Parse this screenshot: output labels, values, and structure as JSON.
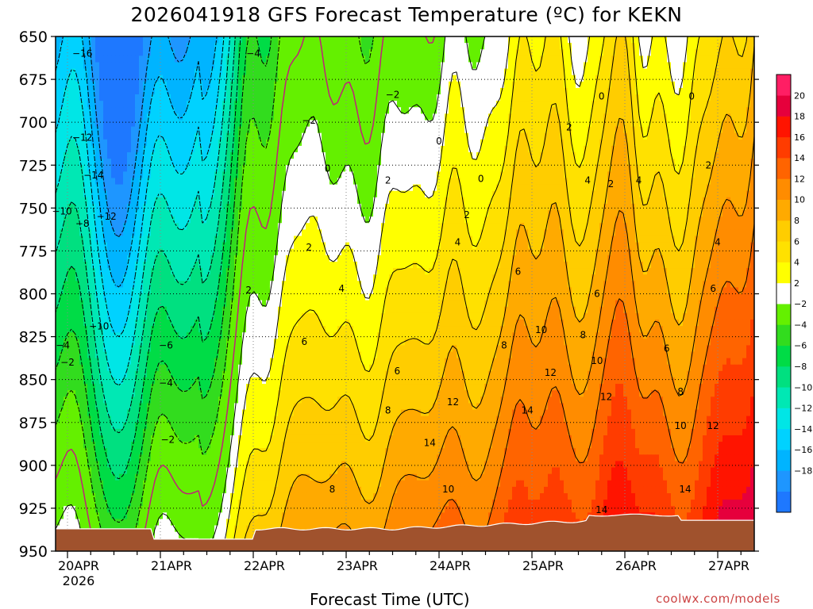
{
  "chart_data": {
    "type": "heatmap",
    "title": "2026041918 GFS Forecast Temperature (ºC) for KEKN",
    "xlabel": "Forecast Time (UTC)",
    "ylabel": "",
    "y_axis": {
      "unit": "hPa",
      "ylim": [
        650,
        950
      ],
      "ticks": [
        "650",
        "675",
        "700",
        "725",
        "750",
        "775",
        "800",
        "825",
        "850",
        "875",
        "900",
        "925",
        "950"
      ]
    },
    "x_axis": {
      "ticks": [
        "20APR",
        "21APR",
        "22APR",
        "23APR",
        "24APR",
        "25APR",
        "26APR",
        "27APR"
      ],
      "year_label": "2026"
    },
    "colorbar": {
      "levels": [
        -20,
        -18,
        -16,
        -14,
        -12,
        -10,
        -8,
        -6,
        -4,
        -2,
        2,
        4,
        6,
        8,
        10,
        12,
        14,
        16,
        18,
        20,
        22
      ],
      "labels": [
        "20",
        "18",
        "16",
        "14",
        "12",
        "10",
        "8",
        "6",
        "4",
        "2",
        "−2",
        "−4",
        "−6",
        "−8",
        "−10",
        "−12",
        "−14",
        "−16",
        "−18"
      ],
      "colors": [
        "#1e78ff",
        "#1e96ff",
        "#00b4ff",
        "#00d2ff",
        "#00e6e6",
        "#00e8b4",
        "#00e080",
        "#00dc46",
        "#32dc1e",
        "#64f000",
        "#ffffff",
        "#ffff00",
        "#ffe100",
        "#ffcd00",
        "#ffaa00",
        "#ff8c00",
        "#ff6400",
        "#ff3c00",
        "#ff1400",
        "#e6003c",
        "#ff1e64"
      ]
    },
    "contour_labels": [
      {
        "text": "−16",
        "t": 0.16,
        "p": 660
      },
      {
        "text": "−12",
        "t": 0.16,
        "p": 709
      },
      {
        "text": "−14",
        "t": 0.28,
        "p": 731
      },
      {
        "text": "−10",
        "t": -0.06,
        "p": 752
      },
      {
        "text": "−8",
        "t": 0.16,
        "p": 759
      },
      {
        "text": "−12",
        "t": 0.42,
        "p": 755
      },
      {
        "text": "−10",
        "t": 0.34,
        "p": 819
      },
      {
        "text": "−4",
        "t": -0.05,
        "p": 830
      },
      {
        "text": "−2",
        "t": 0.0,
        "p": 840
      },
      {
        "text": "−6",
        "t": 1.06,
        "p": 830
      },
      {
        "text": "−4",
        "t": 1.06,
        "p": 852
      },
      {
        "text": "−2",
        "t": 1.08,
        "p": 885
      },
      {
        "text": "−4",
        "t": 2.0,
        "p": 660
      },
      {
        "text": "−2",
        "t": 2.6,
        "p": 699
      },
      {
        "text": "−2",
        "t": 3.5,
        "p": 684
      },
      {
        "text": "0",
        "t": 2.8,
        "p": 727
      },
      {
        "text": "0",
        "t": 4.0,
        "p": 711
      },
      {
        "text": "0",
        "t": 4.45,
        "p": 733
      },
      {
        "text": "0",
        "t": 5.75,
        "p": 685
      },
      {
        "text": "0",
        "t": 6.72,
        "p": 685
      },
      {
        "text": "2",
        "t": 2.6,
        "p": 773
      },
      {
        "text": "2",
        "t": 1.95,
        "p": 798
      },
      {
        "text": "2",
        "t": 3.45,
        "p": 734
      },
      {
        "text": "2",
        "t": 4.3,
        "p": 754
      },
      {
        "text": "2",
        "t": 5.4,
        "p": 703
      },
      {
        "text": "2",
        "t": 5.85,
        "p": 736
      },
      {
        "text": "2",
        "t": 6.9,
        "p": 725
      },
      {
        "text": "4",
        "t": 2.95,
        "p": 797
      },
      {
        "text": "4",
        "t": 4.2,
        "p": 770
      },
      {
        "text": "4",
        "t": 5.6,
        "p": 734
      },
      {
        "text": "4",
        "t": 6.15,
        "p": 734
      },
      {
        "text": "4",
        "t": 7.0,
        "p": 770
      },
      {
        "text": "6",
        "t": 2.55,
        "p": 828
      },
      {
        "text": "6",
        "t": 3.55,
        "p": 845
      },
      {
        "text": "6",
        "t": 4.85,
        "p": 787
      },
      {
        "text": "6",
        "t": 5.7,
        "p": 800
      },
      {
        "text": "6",
        "t": 6.45,
        "p": 832
      },
      {
        "text": "6",
        "t": 6.95,
        "p": 797
      },
      {
        "text": "8",
        "t": 3.45,
        "p": 868
      },
      {
        "text": "8",
        "t": 2.85,
        "p": 914
      },
      {
        "text": "8",
        "t": 4.7,
        "p": 830
      },
      {
        "text": "8",
        "t": 5.55,
        "p": 824
      },
      {
        "text": "8",
        "t": 6.6,
        "p": 857
      },
      {
        "text": "10",
        "t": 4.1,
        "p": 914
      },
      {
        "text": "10",
        "t": 5.1,
        "p": 821
      },
      {
        "text": "10",
        "t": 5.7,
        "p": 839
      },
      {
        "text": "10",
        "t": 6.6,
        "p": 877
      },
      {
        "text": "12",
        "t": 4.15,
        "p": 863
      },
      {
        "text": "12",
        "t": 5.2,
        "p": 846
      },
      {
        "text": "12",
        "t": 5.8,
        "p": 860
      },
      {
        "text": "12",
        "t": 6.95,
        "p": 877
      },
      {
        "text": "14",
        "t": 3.9,
        "p": 887
      },
      {
        "text": "14",
        "t": 4.95,
        "p": 868
      },
      {
        "text": "14",
        "t": 6.65,
        "p": 914
      },
      {
        "text": "14",
        "t": 5.75,
        "p": 926
      }
    ]
  },
  "credit": "coolwx.com/models"
}
